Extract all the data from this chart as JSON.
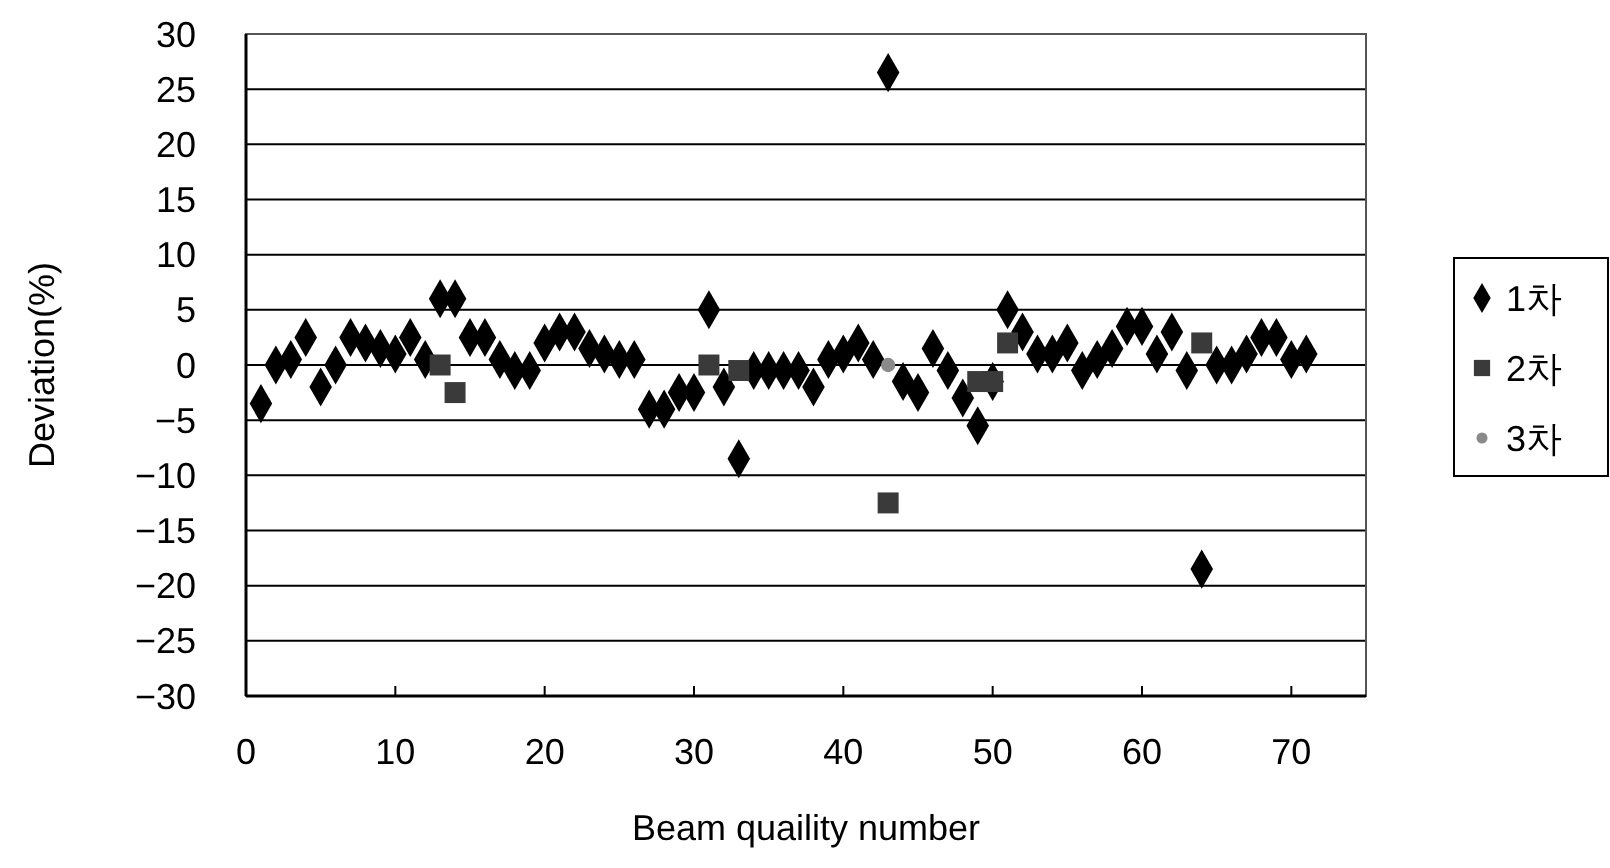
{
  "chart_data": {
    "type": "scatter",
    "xlabel": "Beam quaility number",
    "ylabel": "Deviation(%)",
    "xlim": [
      0,
      75
    ],
    "xticks": [
      0,
      10,
      20,
      30,
      40,
      50,
      60,
      70
    ],
    "ylim": [
      -30,
      30
    ],
    "yticks": [
      -30,
      -25,
      -20,
      -15,
      -10,
      -5,
      0,
      5,
      10,
      15,
      20,
      25,
      30
    ],
    "grid": "y",
    "legend": "right",
    "series": [
      {
        "name": "1차",
        "color": "#000000",
        "marker": "diamond",
        "x": [
          1,
          2,
          3,
          4,
          5,
          6,
          7,
          8,
          9,
          10,
          11,
          12,
          13,
          14,
          15,
          16,
          17,
          18,
          19,
          20,
          21,
          22,
          23,
          24,
          25,
          26,
          27,
          28,
          29,
          30,
          31,
          32,
          33,
          34,
          35,
          36,
          37,
          38,
          39,
          40,
          41,
          42,
          43,
          44,
          45,
          46,
          47,
          48,
          49,
          50,
          51,
          52,
          53,
          54,
          55,
          56,
          57,
          58,
          59,
          60,
          61,
          62,
          63,
          64,
          65,
          66,
          67,
          68,
          69,
          70,
          71
        ],
        "values": [
          -3.5,
          0,
          0.5,
          2.5,
          -2,
          0,
          2.5,
          2,
          1.5,
          1,
          2.5,
          0.5,
          6,
          6,
          2.5,
          2.5,
          0.5,
          -0.5,
          -0.5,
          2,
          3,
          3,
          1.5,
          1,
          0.5,
          0.5,
          -4,
          -4,
          -2.5,
          -2.5,
          5,
          -2,
          -8.5,
          -0.5,
          -0.5,
          -0.5,
          -0.5,
          -2,
          0.5,
          1,
          2,
          0.5,
          26.5,
          -1.5,
          -2.5,
          1.5,
          -0.5,
          -3,
          -5.5,
          -1.5,
          5,
          3,
          1,
          1,
          2,
          -0.5,
          0.5,
          1.5,
          3.5,
          3.5,
          1,
          3,
          -0.5,
          -18.5,
          0,
          0,
          1,
          2.5,
          2.5,
          0.5,
          1
        ]
      },
      {
        "name": "2차",
        "color": "#3a3a3a",
        "marker": "square",
        "x": [
          13,
          14,
          31,
          33,
          43,
          49,
          50,
          51,
          64
        ],
        "values": [
          0,
          -2.5,
          0,
          -0.5,
          -12.5,
          -1.5,
          -1.5,
          2,
          2
        ]
      },
      {
        "name": "3차",
        "color": "#8a8a8a",
        "marker": "circle",
        "x": [
          43
        ],
        "values": [
          0
        ]
      }
    ]
  }
}
